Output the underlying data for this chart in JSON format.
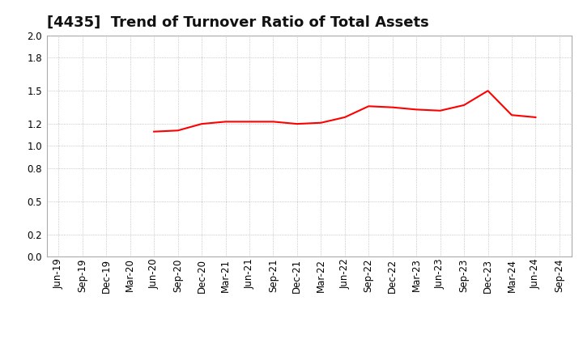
{
  "title": "[4435]  Trend of Turnover Ratio of Total Assets",
  "line_color": "#ff0000",
  "line_width": 1.5,
  "background_color": "#ffffff",
  "grid_color": "#999999",
  "ylim": [
    0.0,
    2.0
  ],
  "yticks": [
    0.0,
    0.2,
    0.5,
    0.8,
    1.0,
    1.2,
    1.5,
    1.8,
    2.0
  ],
  "x_labels": [
    "Jun-19",
    "Sep-19",
    "Dec-19",
    "Mar-20",
    "Jun-20",
    "Sep-20",
    "Dec-20",
    "Mar-21",
    "Jun-21",
    "Sep-21",
    "Dec-21",
    "Mar-22",
    "Jun-22",
    "Sep-22",
    "Dec-22",
    "Mar-23",
    "Jun-23",
    "Sep-23",
    "Dec-23",
    "Mar-24",
    "Jun-24",
    "Sep-24"
  ],
  "values": [
    null,
    null,
    null,
    null,
    1.13,
    1.14,
    1.2,
    1.22,
    1.22,
    1.22,
    1.2,
    1.21,
    1.26,
    1.36,
    1.35,
    1.33,
    1.32,
    1.37,
    1.5,
    1.28,
    1.26,
    null
  ],
  "title_fontsize": 13,
  "tick_fontsize": 8.5,
  "title_color": "#111111",
  "title_fontweight": "bold"
}
